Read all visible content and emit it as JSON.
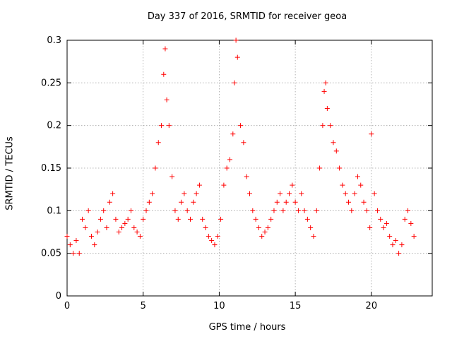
{
  "chart_data": {
    "type": "scatter",
    "title": "Day 337 of 2016, SRMTID for receiver geoa",
    "xlabel": "GPS time / hours",
    "ylabel": "SRMTID / TECUs",
    "xlim": [
      0,
      24
    ],
    "ylim": [
      0,
      0.3
    ],
    "xticks": [
      0,
      5,
      10,
      15,
      20
    ],
    "xtick_labels": [
      "0",
      "5",
      "10",
      "15",
      "20"
    ],
    "yticks": [
      0,
      0.05,
      0.1,
      0.15,
      0.2,
      0.25,
      0.3
    ],
    "ytick_labels": [
      "0",
      "0.05",
      "0.1",
      "0.15",
      "0.2",
      "0.25",
      "0.3"
    ],
    "grid": true,
    "marker": "+",
    "series": [
      {
        "name": "SRMTID",
        "color": "#ff0000",
        "x": [
          0.0,
          0.2,
          0.4,
          0.6,
          0.8,
          1.0,
          1.2,
          1.4,
          1.6,
          1.8,
          2.0,
          2.2,
          2.4,
          2.6,
          2.8,
          3.0,
          3.2,
          3.4,
          3.6,
          3.8,
          4.0,
          4.2,
          4.4,
          4.6,
          4.8,
          5.0,
          5.2,
          5.4,
          5.6,
          5.8,
          6.0,
          6.2,
          6.35,
          6.45,
          6.55,
          6.7,
          6.9,
          7.1,
          7.3,
          7.5,
          7.7,
          7.9,
          8.1,
          8.3,
          8.5,
          8.7,
          8.9,
          9.1,
          9.3,
          9.5,
          9.7,
          9.9,
          10.1,
          10.3,
          10.5,
          10.7,
          10.9,
          11.0,
          11.1,
          11.2,
          11.4,
          11.6,
          11.8,
          12.0,
          12.2,
          12.4,
          12.6,
          12.8,
          13.0,
          13.2,
          13.4,
          13.6,
          13.8,
          14.0,
          14.2,
          14.4,
          14.6,
          14.8,
          15.0,
          15.2,
          15.4,
          15.6,
          15.8,
          16.0,
          16.2,
          16.4,
          16.6,
          16.8,
          16.9,
          17.0,
          17.1,
          17.3,
          17.5,
          17.7,
          17.9,
          18.1,
          18.3,
          18.5,
          18.7,
          18.9,
          19.1,
          19.3,
          19.5,
          19.7,
          19.9,
          20.0,
          20.2,
          20.4,
          20.6,
          20.8,
          21.0,
          21.2,
          21.4,
          21.6,
          21.8,
          22.0,
          22.2,
          22.4,
          22.6,
          22.8
        ],
        "y": [
          0.07,
          0.06,
          0.05,
          0.065,
          0.05,
          0.09,
          0.08,
          0.1,
          0.07,
          0.06,
          0.075,
          0.09,
          0.1,
          0.08,
          0.11,
          0.12,
          0.09,
          0.075,
          0.08,
          0.085,
          0.09,
          0.1,
          0.08,
          0.075,
          0.07,
          0.09,
          0.1,
          0.11,
          0.12,
          0.15,
          0.18,
          0.2,
          0.26,
          0.29,
          0.23,
          0.2,
          0.14,
          0.1,
          0.09,
          0.11,
          0.12,
          0.1,
          0.09,
          0.11,
          0.12,
          0.13,
          0.09,
          0.08,
          0.07,
          0.065,
          0.06,
          0.07,
          0.09,
          0.13,
          0.15,
          0.16,
          0.19,
          0.25,
          0.3,
          0.28,
          0.2,
          0.18,
          0.14,
          0.12,
          0.1,
          0.09,
          0.08,
          0.07,
          0.075,
          0.08,
          0.09,
          0.1,
          0.11,
          0.12,
          0.1,
          0.11,
          0.12,
          0.13,
          0.11,
          0.1,
          0.12,
          0.1,
          0.09,
          0.08,
          0.07,
          0.1,
          0.15,
          0.2,
          0.24,
          0.25,
          0.22,
          0.2,
          0.18,
          0.17,
          0.15,
          0.13,
          0.12,
          0.11,
          0.1,
          0.12,
          0.14,
          0.13,
          0.11,
          0.1,
          0.08,
          0.19,
          0.12,
          0.1,
          0.09,
          0.08,
          0.085,
          0.07,
          0.06,
          0.065,
          0.05,
          0.06,
          0.09,
          0.1,
          0.085,
          0.07
        ]
      }
    ]
  }
}
